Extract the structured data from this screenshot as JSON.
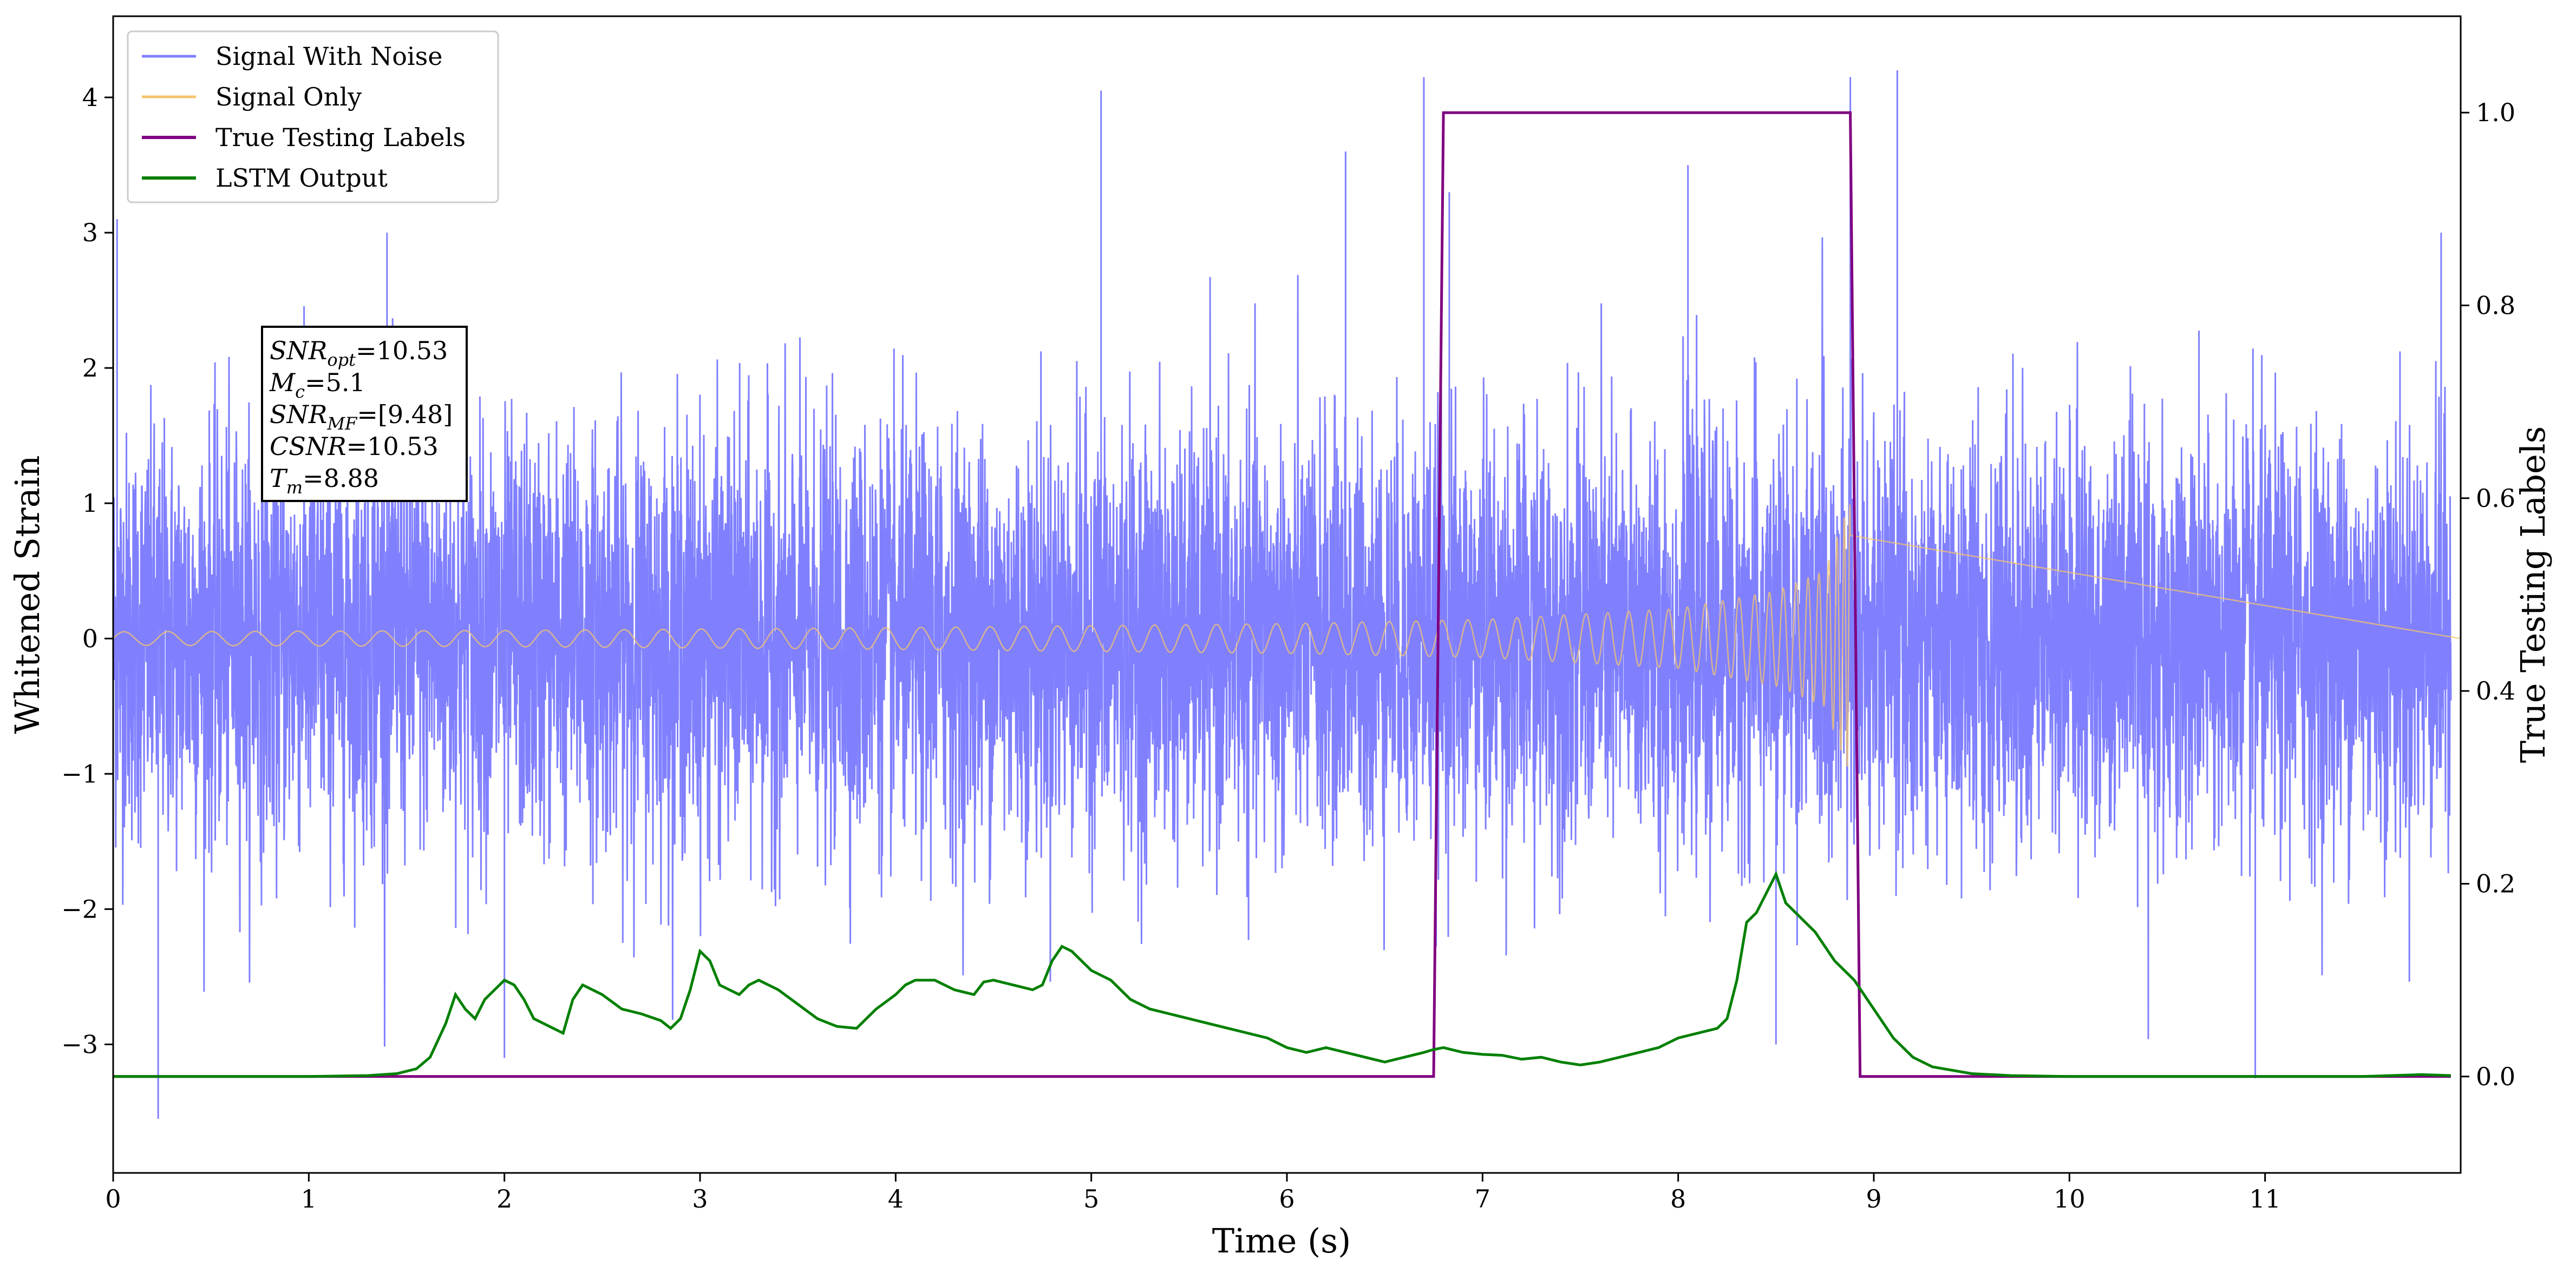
{
  "chart_data": {
    "type": "line",
    "xlabel": "Time (s)",
    "ylabel": "Whitened Strain",
    "y2label": "True Testing Labels",
    "xlim": [
      0,
      12.0
    ],
    "ylim": [
      -3.95,
      4.6
    ],
    "y2lim": [
      -0.1,
      1.1
    ],
    "xticks": [
      0,
      1,
      2,
      3,
      4,
      5,
      6,
      7,
      8,
      9,
      10,
      11
    ],
    "yticks": [
      -3,
      -2,
      -1,
      0,
      1,
      2,
      3,
      4
    ],
    "y2ticks": [
      0.0,
      0.2,
      0.4,
      0.6,
      0.8,
      1.0
    ],
    "xtick_labels": [
      "0",
      "1",
      "2",
      "3",
      "4",
      "5",
      "6",
      "7",
      "8",
      "9",
      "10",
      "11"
    ],
    "ytick_labels": [
      "−3",
      "−2",
      "−1",
      "0",
      "1",
      "2",
      "3",
      "4"
    ],
    "y2tick_labels": [
      "0.0",
      "0.2",
      "0.4",
      "0.6",
      "0.8",
      "1.0"
    ],
    "grid": false,
    "legend_position": "top-left",
    "series": [
      {
        "name": "Signal With Noise",
        "color": "#8080ff",
        "axis": "left",
        "kind": "noise",
        "approx_std": 0.75,
        "typical_peak": 3.1,
        "spikes": [
          [
            0.02,
            3.1
          ],
          [
            0.23,
            -3.55
          ],
          [
            1.4,
            3.0
          ],
          [
            2.0,
            -3.1
          ],
          [
            5.05,
            4.05
          ],
          [
            6.3,
            3.6
          ],
          [
            6.7,
            4.15
          ],
          [
            6.83,
            3.3
          ],
          [
            8.05,
            3.5
          ],
          [
            8.5,
            -3.0
          ],
          [
            8.88,
            4.15
          ],
          [
            9.12,
            4.2
          ],
          [
            10.95,
            -3.25
          ],
          [
            11.9,
            3.0
          ]
        ]
      },
      {
        "name": "Signal Only",
        "color": "#f4c46e",
        "axis": "left",
        "kind": "chirp",
        "start": 0.0,
        "end": 8.88,
        "envelope": [
          [
            0.0,
            0.05
          ],
          [
            2.0,
            0.06
          ],
          [
            4.0,
            0.08
          ],
          [
            6.0,
            0.11
          ],
          [
            7.0,
            0.14
          ],
          [
            8.0,
            0.22
          ],
          [
            8.5,
            0.35
          ],
          [
            8.75,
            0.5
          ],
          [
            8.85,
            0.9
          ],
          [
            8.88,
            1.0
          ]
        ]
      },
      {
        "name": "True Testing Labels",
        "color": "#800080",
        "axis": "right",
        "points": [
          [
            0.0,
            0.0
          ],
          [
            6.75,
            0.0
          ],
          [
            6.8,
            1.0
          ],
          [
            8.88,
            1.0
          ],
          [
            8.93,
            0.0
          ],
          [
            11.95,
            0.0
          ]
        ]
      },
      {
        "name": "LSTM Output",
        "color": "#008000",
        "axis": "right",
        "points": [
          [
            0.0,
            0.0
          ],
          [
            0.5,
            0.0
          ],
          [
            1.0,
            0.0
          ],
          [
            1.3,
            0.001
          ],
          [
            1.45,
            0.003
          ],
          [
            1.55,
            0.008
          ],
          [
            1.62,
            0.02
          ],
          [
            1.7,
            0.055
          ],
          [
            1.75,
            0.085
          ],
          [
            1.8,
            0.07
          ],
          [
            1.85,
            0.06
          ],
          [
            1.9,
            0.08
          ],
          [
            1.95,
            0.09
          ],
          [
            2.0,
            0.1
          ],
          [
            2.05,
            0.095
          ],
          [
            2.1,
            0.08
          ],
          [
            2.15,
            0.06
          ],
          [
            2.2,
            0.055
          ],
          [
            2.25,
            0.05
          ],
          [
            2.3,
            0.045
          ],
          [
            2.35,
            0.08
          ],
          [
            2.4,
            0.095
          ],
          [
            2.45,
            0.09
          ],
          [
            2.5,
            0.085
          ],
          [
            2.6,
            0.07
          ],
          [
            2.7,
            0.065
          ],
          [
            2.8,
            0.058
          ],
          [
            2.85,
            0.05
          ],
          [
            2.9,
            0.06
          ],
          [
            2.95,
            0.09
          ],
          [
            3.0,
            0.13
          ],
          [
            3.05,
            0.12
          ],
          [
            3.1,
            0.095
          ],
          [
            3.15,
            0.09
          ],
          [
            3.2,
            0.085
          ],
          [
            3.25,
            0.095
          ],
          [
            3.3,
            0.1
          ],
          [
            3.4,
            0.09
          ],
          [
            3.5,
            0.075
          ],
          [
            3.6,
            0.06
          ],
          [
            3.7,
            0.052
          ],
          [
            3.8,
            0.05
          ],
          [
            3.9,
            0.07
          ],
          [
            4.0,
            0.085
          ],
          [
            4.05,
            0.095
          ],
          [
            4.1,
            0.1
          ],
          [
            4.2,
            0.1
          ],
          [
            4.3,
            0.09
          ],
          [
            4.4,
            0.085
          ],
          [
            4.45,
            0.098
          ],
          [
            4.5,
            0.1
          ],
          [
            4.6,
            0.095
          ],
          [
            4.7,
            0.09
          ],
          [
            4.75,
            0.095
          ],
          [
            4.8,
            0.12
          ],
          [
            4.85,
            0.135
          ],
          [
            4.9,
            0.13
          ],
          [
            5.0,
            0.11
          ],
          [
            5.1,
            0.1
          ],
          [
            5.2,
            0.08
          ],
          [
            5.3,
            0.07
          ],
          [
            5.5,
            0.06
          ],
          [
            5.7,
            0.05
          ],
          [
            5.9,
            0.04
          ],
          [
            6.0,
            0.03
          ],
          [
            6.1,
            0.025
          ],
          [
            6.2,
            0.03
          ],
          [
            6.3,
            0.025
          ],
          [
            6.4,
            0.02
          ],
          [
            6.5,
            0.015
          ],
          [
            6.6,
            0.02
          ],
          [
            6.7,
            0.025
          ],
          [
            6.75,
            0.028
          ],
          [
            6.8,
            0.03
          ],
          [
            6.9,
            0.025
          ],
          [
            7.0,
            0.023
          ],
          [
            7.1,
            0.022
          ],
          [
            7.2,
            0.018
          ],
          [
            7.3,
            0.02
          ],
          [
            7.4,
            0.015
          ],
          [
            7.5,
            0.012
          ],
          [
            7.6,
            0.015
          ],
          [
            7.7,
            0.02
          ],
          [
            7.8,
            0.025
          ],
          [
            7.9,
            0.03
          ],
          [
            8.0,
            0.04
          ],
          [
            8.1,
            0.045
          ],
          [
            8.2,
            0.05
          ],
          [
            8.25,
            0.06
          ],
          [
            8.3,
            0.1
          ],
          [
            8.35,
            0.16
          ],
          [
            8.4,
            0.17
          ],
          [
            8.45,
            0.19
          ],
          [
            8.5,
            0.21
          ],
          [
            8.55,
            0.18
          ],
          [
            8.6,
            0.17
          ],
          [
            8.7,
            0.15
          ],
          [
            8.8,
            0.12
          ],
          [
            8.9,
            0.1
          ],
          [
            9.0,
            0.07
          ],
          [
            9.1,
            0.04
          ],
          [
            9.2,
            0.02
          ],
          [
            9.3,
            0.01
          ],
          [
            9.5,
            0.003
          ],
          [
            9.7,
            0.001
          ],
          [
            10.0,
            0.0
          ],
          [
            11.0,
            0.0
          ],
          [
            11.5,
            0.0
          ],
          [
            11.8,
            0.002
          ],
          [
            11.95,
            0.001
          ]
        ]
      }
    ]
  },
  "info_box": {
    "lines": [
      {
        "base": "SNR",
        "sub": "opt",
        "value": "=10.53"
      },
      {
        "base": "M",
        "sub": "c",
        "value": "=5.1"
      },
      {
        "base": "SNR",
        "sub": "MF",
        "value": "=[9.48]"
      },
      {
        "base": "CSNR",
        "sub": "",
        "value": "=10.53"
      },
      {
        "base": "T",
        "sub": "m",
        "value": "=8.88"
      }
    ]
  }
}
